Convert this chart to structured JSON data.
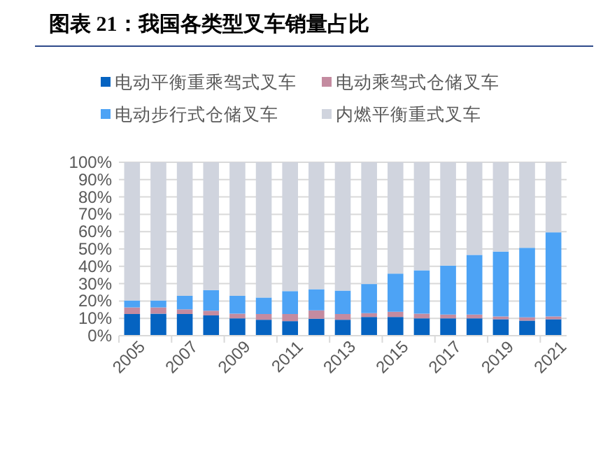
{
  "chart_data": {
    "type": "bar",
    "title": "图表 21：我国各类型叉车销量占比",
    "stacked": true,
    "legend": "top",
    "grid": "y",
    "categories": [
      "2005",
      null,
      "2007",
      null,
      "2009",
      null,
      "2011",
      null,
      "2013",
      null,
      "2015",
      null,
      "2017",
      null,
      "2019",
      null,
      "2021"
    ],
    "ylim": [
      0,
      100
    ],
    "yticks": [
      {
        "value": 0,
        "label": "0%"
      },
      {
        "value": 10,
        "label": "10%"
      },
      {
        "value": 20,
        "label": "20%"
      },
      {
        "value": 30,
        "label": "30%"
      },
      {
        "value": 40,
        "label": "40%"
      },
      {
        "value": 50,
        "label": "50%"
      },
      {
        "value": 60,
        "label": "60%"
      },
      {
        "value": 70,
        "label": "70%"
      },
      {
        "value": 80,
        "label": "80%"
      },
      {
        "value": 90,
        "label": "90%"
      },
      {
        "value": 100,
        "label": "100%"
      }
    ],
    "series": [
      {
        "name": "电动平衡重乘驾式叉车",
        "color": "#0563c1",
        "values": [
          12.5,
          12.7,
          12.5,
          11.7,
          10.0,
          9.2,
          8.4,
          9.8,
          9.2,
          10.8,
          10.8,
          10.0,
          10.0,
          10.0,
          9.5,
          8.7,
          9.5
        ]
      },
      {
        "name": "电动乘驾式仓储叉车",
        "color": "#c48ba0",
        "values": [
          3.8,
          3.6,
          2.7,
          2.7,
          2.7,
          3.3,
          4.1,
          4.8,
          3.3,
          2.2,
          3.0,
          2.7,
          2.2,
          2.2,
          1.6,
          1.9,
          1.6
        ]
      },
      {
        "name": "电动步行式仓储叉车",
        "color": "#4da3f5",
        "values": [
          4.0,
          4.0,
          7.8,
          11.9,
          10.3,
          9.5,
          13.2,
          12.2,
          13.5,
          16.8,
          22.0,
          25.0,
          28.2,
          34.4,
          37.4,
          40.1,
          48.5
        ]
      },
      {
        "name": "内燃平衡重式叉车",
        "color": "#d0d4de",
        "values": [
          79.7,
          79.7,
          77.0,
          73.7,
          77.0,
          78.0,
          74.3,
          73.2,
          74.0,
          70.2,
          64.2,
          62.3,
          59.6,
          53.4,
          51.5,
          49.3,
          40.4
        ]
      }
    ]
  }
}
